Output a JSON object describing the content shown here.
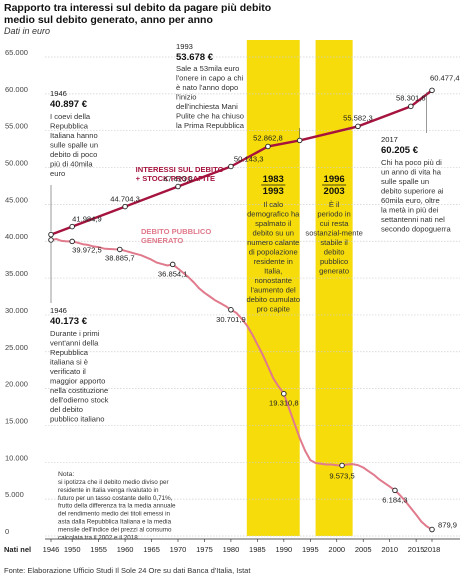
{
  "header": {
    "title": "Rapporto tra interessi sul debito da pagare più debito medio sul debito generato, anno per anno",
    "unit": "Dati in euro"
  },
  "footer": {
    "source": "Fonte: Elaborazione Ufficio Studi Il Sole 24 Ore su dati Banca d'Italia, Istat"
  },
  "colors": {
    "interest_line": "#a5133e",
    "debt_line": "#e07a8c",
    "highlight_band": "#f5dc0a",
    "grid": "#cfcfcf"
  },
  "chart_data": {
    "type": "line",
    "title": "Rapporto tra interessi sul debito da pagare più debito medio sul debito generato, anno per anno",
    "xlabel": "Nati nel",
    "ylabel": "Dati in euro",
    "ylim": [
      0,
      65000
    ],
    "xlim": [
      1946,
      2018
    ],
    "x_tick_values": [
      1946,
      1950,
      1955,
      1960,
      1965,
      1970,
      1975,
      1980,
      1985,
      1990,
      1995,
      2000,
      2005,
      2010,
      2015,
      2018
    ],
    "x_tick_labels": [
      "1946",
      "1950",
      "1955",
      "1960",
      "1965",
      "1970",
      "1975",
      "1980",
      "1985",
      "1990",
      "1995",
      "2000",
      "2005",
      "2010",
      "2015",
      "2018"
    ],
    "y_tick_values": [
      0,
      5000,
      10000,
      15000,
      20000,
      25000,
      30000,
      35000,
      40000,
      45000,
      50000,
      55000,
      60000,
      65000
    ],
    "y_tick_labels": [
      "0",
      "5.000",
      "10.000",
      "15.000",
      "20.000",
      "25.000",
      "30.000",
      "35.000",
      "40.000",
      "45.000",
      "50.000",
      "55.000",
      "60.000",
      "65.000"
    ],
    "grid": true,
    "highlight_ranges": [
      [
        1983,
        1993
      ],
      [
        1996,
        2003
      ]
    ],
    "series": [
      {
        "name": "INTERESSI SUL DEBITO + STOCK PROCAPITE",
        "label_lines": [
          "INTERESSI SUL DEBITO",
          "+ STOCK PROCAPITE"
        ],
        "x": [
          1946,
          1950,
          1960,
          1970,
          1980,
          1987,
          1993,
          2004,
          2014,
          2018
        ],
        "values": [
          40897,
          41985,
          44704,
          47424,
          50143,
          52863,
          53678,
          55583,
          58302,
          60477
        ]
      },
      {
        "name": "DEBITO PUBBLICO GENERATO",
        "label_lines": [
          "DEBITO PUBBLICO",
          "GENERATO"
        ],
        "x": [
          1946,
          1947,
          1948,
          1949,
          1950,
          1951,
          1952,
          1953,
          1954,
          1955,
          1956,
          1957,
          1958,
          1959,
          1960,
          1961,
          1962,
          1963,
          1964,
          1965,
          1966,
          1967,
          1968,
          1969,
          1970,
          1971,
          1972,
          1973,
          1974,
          1975,
          1976,
          1977,
          1978,
          1979,
          1980,
          1981,
          1982,
          1983,
          1984,
          1985,
          1986,
          1987,
          1988,
          1989,
          1990,
          1991,
          1992,
          1993,
          1994,
          1995,
          1996,
          1997,
          1998,
          1999,
          2000,
          2001,
          2002,
          2003,
          2004,
          2005,
          2006,
          2007,
          2008,
          2009,
          2010,
          2011,
          2012,
          2013,
          2014,
          2015,
          2016,
          2017,
          2018
        ],
        "values": [
          40173,
          40300,
          40050,
          39980,
          39972,
          39800,
          39600,
          39500,
          39300,
          39200,
          39000,
          38950,
          38900,
          38885,
          38700,
          38500,
          38300,
          38100,
          37800,
          37500,
          37100,
          36900,
          36700,
          36854,
          36300,
          35700,
          35100,
          34400,
          33600,
          33000,
          32500,
          32000,
          31600,
          31200,
          30701,
          30300,
          29500,
          28600,
          27400,
          26000,
          24600,
          23000,
          21400,
          20300,
          19310,
          17300,
          15300,
          13300,
          11600,
          10300,
          9900,
          9800,
          9700,
          9700,
          9600,
          9573,
          9700,
          9750,
          9620,
          9300,
          8800,
          8300,
          7700,
          7200,
          6700,
          6184,
          5500,
          4700,
          3800,
          2900,
          1950,
          1300,
          880
        ]
      }
    ],
    "point_labels": [
      {
        "series": 0,
        "x": 1946,
        "label": "40.897 €"
      },
      {
        "series": 0,
        "x": 1950,
        "label": "41.984,9"
      },
      {
        "series": 0,
        "x": 1960,
        "label": "44.704,3"
      },
      {
        "series": 0,
        "x": 1970,
        "label": "47.423,8"
      },
      {
        "series": 0,
        "x": 1980,
        "label": "50.143,3"
      },
      {
        "series": 0,
        "x": 1987,
        "label": "52.862,8"
      },
      {
        "series": 0,
        "x": 1993,
        "label": "53.678 €"
      },
      {
        "series": 0,
        "x": 2004,
        "label": "55.582,3"
      },
      {
        "series": 0,
        "x": 2014,
        "label": "58.301,8"
      },
      {
        "series": 0,
        "x": 2018,
        "label": "60.477,4"
      },
      {
        "series": 1,
        "x": 1946,
        "label": "40.173 €"
      },
      {
        "series": 1,
        "x": 1950,
        "label": "39.972,5"
      },
      {
        "series": 1,
        "x": 1959,
        "label": "38.885,7"
      },
      {
        "series": 1,
        "x": 1969,
        "label": "36.854,1"
      },
      {
        "series": 1,
        "x": 1980,
        "label": "30.701,9"
      },
      {
        "series": 1,
        "x": 1990,
        "label": "19.310,8"
      },
      {
        "series": 1,
        "x": 2001,
        "label": "9.573,5"
      },
      {
        "series": 1,
        "x": 2011,
        "label": "6.184,3"
      },
      {
        "series": 1,
        "x": 2018,
        "label": "879,9"
      }
    ],
    "annotations": {
      "ann_1946_top": {
        "year": "1946",
        "value": "40.897 €",
        "text": "I coevi della Repubblica Italiana hanno sulle spalle un debito di poco più di 40mila euro"
      },
      "ann_1946_bottom": {
        "year": "1946",
        "value": "40.173 €",
        "text": "Durante i primi vent'anni della Repubblica italiana si è verificato il maggior apporto nella costituzione dell'odierno stock del debito pubblico italiano"
      },
      "ann_1993": {
        "year": "1993",
        "value": "53.678 €",
        "text": "Sale a 53mila euro l'onere in capo a chi è nato l'anno dopo l'inizio dell'inchiesta Mani Pulite che ha chiuso la Prima Repubblica"
      },
      "ann_2017": {
        "year": "2017",
        "value": "60.205 €",
        "text": "Chi ha poco più di un anno di vita ha sulle spalle un debito superiore ai 60mila euro, oltre la metà in più dei settantenni nati nel secondo dopoguerra"
      },
      "band_1": {
        "from": "1983",
        "to": "1993",
        "text": "Il calo demografico ha spalmato il debito su un numero calante di popolazione residente in Italia, nonostante l'aumento del debito cumulato pro capite"
      },
      "band_2": {
        "from": "1996",
        "to": "2003",
        "text": "È il periodo in cui resta sostanzial-mente stabile il debito pubblico generato"
      },
      "note": {
        "title": "Nota:",
        "text": "si ipotizza che il debito medio diviso per residente in Italia venga rivalutato in futuro per un tasso costante dello 0,71%, frutto della differenza tra la media annuale del rendimento medio dei titoli emessi in asta dalla Repubblica Italiana e la media mensile dell'indice dei prezzi al consumo calcolata tra il 2002 e il 2018"
      }
    }
  }
}
